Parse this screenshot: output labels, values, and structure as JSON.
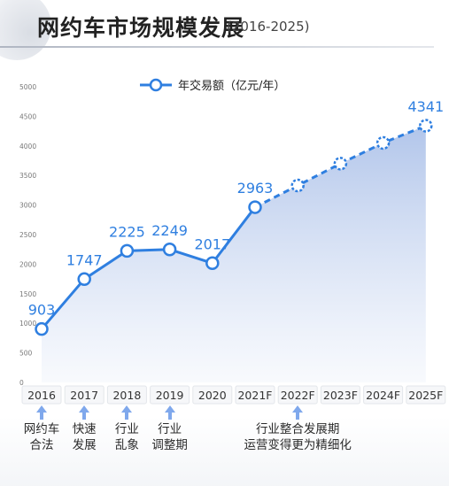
{
  "header": {
    "title": "网约车市场规模发展",
    "subtitle": "(2016-2025)"
  },
  "colors": {
    "line": "#2f7fe0",
    "area_top": "#a9bfe8",
    "area_bottom": "#f3f6fc",
    "marker_fill": "#ffffff",
    "label": "#2f7fe0",
    "axis_text": "#777777",
    "arrow": "#7fa8ec"
  },
  "chart_data": {
    "type": "area",
    "categories": [
      "2016",
      "2017",
      "2018",
      "2019",
      "2020",
      "2021F",
      "2022F",
      "2023F",
      "2024F",
      "2025F"
    ],
    "series": [
      {
        "name": "年交易额（亿元/年）",
        "values": [
          903,
          1747,
          2225,
          2249,
          2017,
          2963,
          3330,
          3700,
          4050,
          4341
        ],
        "labels": [
          "903",
          "1747",
          "2225",
          "2249",
          "2017",
          "2963",
          "",
          "",
          "",
          "4341"
        ],
        "forecast_from_index": 5
      }
    ],
    "yticks": [
      "5000",
      "4500",
      "4000",
      "3500",
      "3000",
      "2500",
      "2000",
      "1500",
      "1000",
      "500",
      "0"
    ],
    "ylim": [
      0,
      5000
    ],
    "legend_position": "top-center",
    "grid": false
  },
  "milestones": [
    {
      "category_index": 0,
      "line1": "网约车",
      "line2": "合法"
    },
    {
      "category_index": 1,
      "line1": "快速",
      "line2": "发展"
    },
    {
      "category_index": 2,
      "line1": "行业",
      "line2": "乱象"
    },
    {
      "category_index": 3,
      "line1": "行业",
      "line2": "调整期"
    },
    {
      "category_index": 6,
      "line1": "行业整合发展期",
      "line2": "运营变得更为精细化"
    }
  ]
}
